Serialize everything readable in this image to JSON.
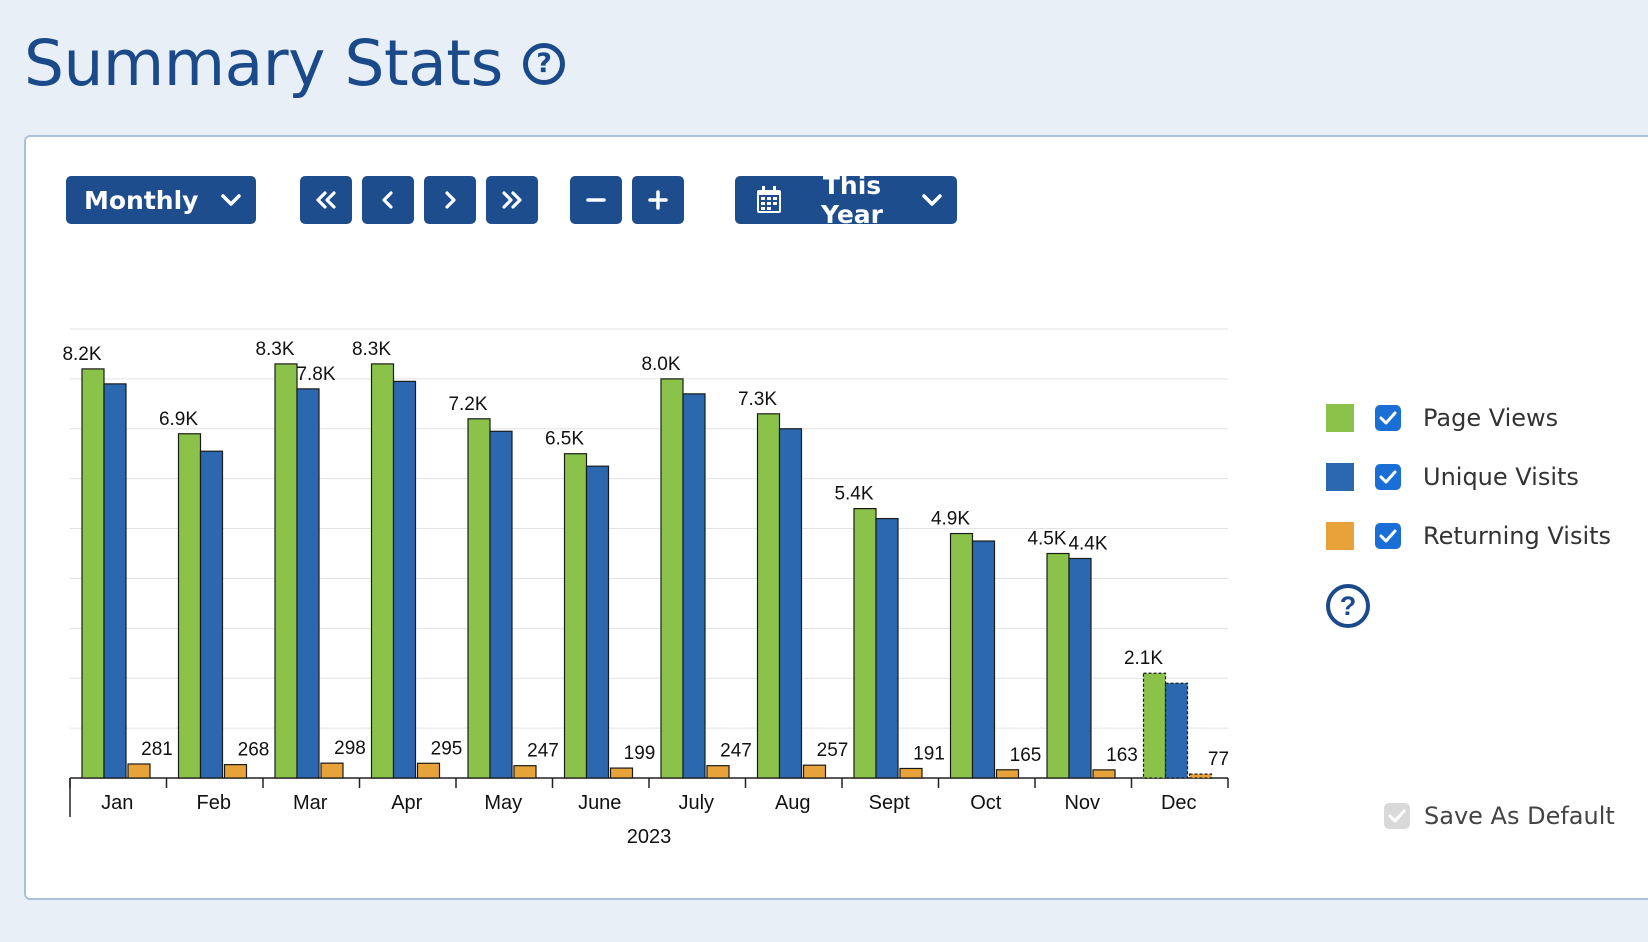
{
  "header": {
    "title": "Summary Stats",
    "help_icon": "question-circle-icon"
  },
  "toolbar": {
    "period_select": {
      "value": "Monthly",
      "icon": "chevron-down-icon"
    },
    "nav_buttons": [
      {
        "name": "first-period-button",
        "icon": "double-chevron-left-icon"
      },
      {
        "name": "previous-period-button",
        "icon": "chevron-left-icon"
      },
      {
        "name": "next-period-button",
        "icon": "chevron-right-icon"
      },
      {
        "name": "last-period-button",
        "icon": "double-chevron-right-icon"
      }
    ],
    "zoom_buttons": [
      {
        "name": "zoom-out-button",
        "icon": "minus-icon"
      },
      {
        "name": "zoom-in-button",
        "icon": "plus-icon"
      }
    ],
    "range_select": {
      "value": "This Year",
      "icon": "calendar-icon"
    }
  },
  "legend": {
    "items": [
      {
        "label": "Page Views",
        "color": "#8bc34a",
        "checked": true
      },
      {
        "label": "Unique Visits",
        "color": "#2b68b0",
        "checked": true
      },
      {
        "label": "Returning Visits",
        "color": "#e8a23a",
        "checked": true
      }
    ],
    "help_icon": "question-circle-icon"
  },
  "save_default": {
    "label": "Save As Default",
    "checked": true
  },
  "chart_data": {
    "type": "bar",
    "categories": [
      "Jan",
      "Feb",
      "Mar",
      "Apr",
      "May",
      "June",
      "July",
      "Aug",
      "Sept",
      "Oct",
      "Nov",
      "Dec"
    ],
    "xlabel": "2023",
    "ylabel": "",
    "ylim": [
      0,
      9000
    ],
    "grid": true,
    "legend": "right",
    "series": [
      {
        "name": "Page Views",
        "color": "#8bc34a",
        "values": [
          8200,
          6900,
          8300,
          8300,
          7200,
          6500,
          8000,
          7300,
          5400,
          4900,
          4500,
          2100
        ],
        "labels": [
          "8.2K",
          "6.9K",
          "8.3K",
          "8.3K",
          "7.2K",
          "6.5K",
          "8.0K",
          "7.3K",
          "5.4K",
          "4.9K",
          "4.5K",
          "2.1K"
        ]
      },
      {
        "name": "Unique Visits",
        "color": "#2b68b0",
        "values": [
          7900,
          6550,
          7800,
          7950,
          6950,
          6250,
          7700,
          7000,
          5200,
          4750,
          4400,
          1900
        ],
        "labels": [
          "",
          "",
          "7.8K",
          "",
          "",
          "",
          "",
          "",
          "",
          "",
          "4.4K",
          ""
        ]
      },
      {
        "name": "Returning Visits",
        "color": "#e8a23a",
        "values": [
          281,
          268,
          298,
          295,
          247,
          199,
          247,
          257,
          191,
          165,
          163,
          77
        ],
        "labels": [
          "281",
          "268",
          "298",
          "295",
          "247",
          "199",
          "247",
          "257",
          "191",
          "165",
          "163",
          "77"
        ]
      }
    ],
    "partial_period": "Dec"
  }
}
